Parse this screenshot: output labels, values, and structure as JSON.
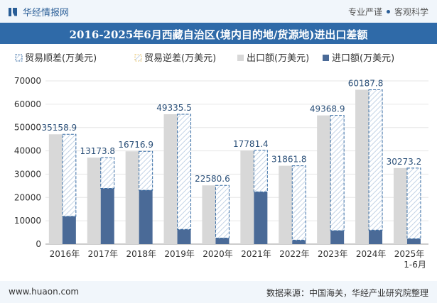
{
  "header": {
    "brand": "华经情报网",
    "slogan_1": "专业严谨",
    "slogan_2": "客观科学",
    "title": "2016-2025年6月西藏自治区(境内目的地/货源地)进出口差额"
  },
  "footer": {
    "website": "www.huaon.com",
    "source": "数据来源：中国海关，华经产业研究院整理"
  },
  "colors": {
    "export": "#d8d8d8",
    "import": "#4a6a97",
    "surplus_stroke": "#3a6ea5",
    "deficit_stroke": "#e9c46a",
    "title_bg": "#2f6aa8"
  },
  "chart_data": {
    "type": "bar",
    "title": "2016-2025年6月西藏自治区(境内目的地/货源地)进出口差额",
    "legend": [
      "贸易顺差(万美元)",
      "贸易逆差(万美元)",
      "出口额(万美元)",
      "进口额(万美元)"
    ],
    "legend_position": "top-left",
    "categories": [
      "2016年",
      "2017年",
      "2018年",
      "2019年",
      "2020年",
      "2021年",
      "2022年",
      "2023年",
      "2024年",
      "2025年\n1-6月"
    ],
    "series": [
      {
        "name": "出口额(万美元)",
        "values": [
          47100,
          37100,
          39800,
          55700,
          25200,
          40200,
          33600,
          55200,
          66200,
          32600
        ]
      },
      {
        "name": "进口额(万美元)",
        "values": [
          11900,
          23900,
          23100,
          6300,
          2600,
          22400,
          1700,
          5800,
          6000,
          2300
        ]
      },
      {
        "name": "贸易顺差(万美元)",
        "values": [
          35158.9,
          13173.8,
          16716.9,
          49335.5,
          22580.6,
          17781.4,
          31861.8,
          49368.9,
          60187.8,
          30273.2
        ]
      }
    ],
    "surplus_labels": [
      "35158.9",
      "13173.8",
      "16716.9",
      "49335.5",
      "22580.6",
      "17781.4",
      "31861.8",
      "49368.9",
      "60187.8",
      "30273.2"
    ],
    "ylim": [
      0,
      70000
    ],
    "yticks": [
      0,
      10000,
      20000,
      30000,
      40000,
      50000,
      60000,
      70000
    ],
    "grid": true
  }
}
